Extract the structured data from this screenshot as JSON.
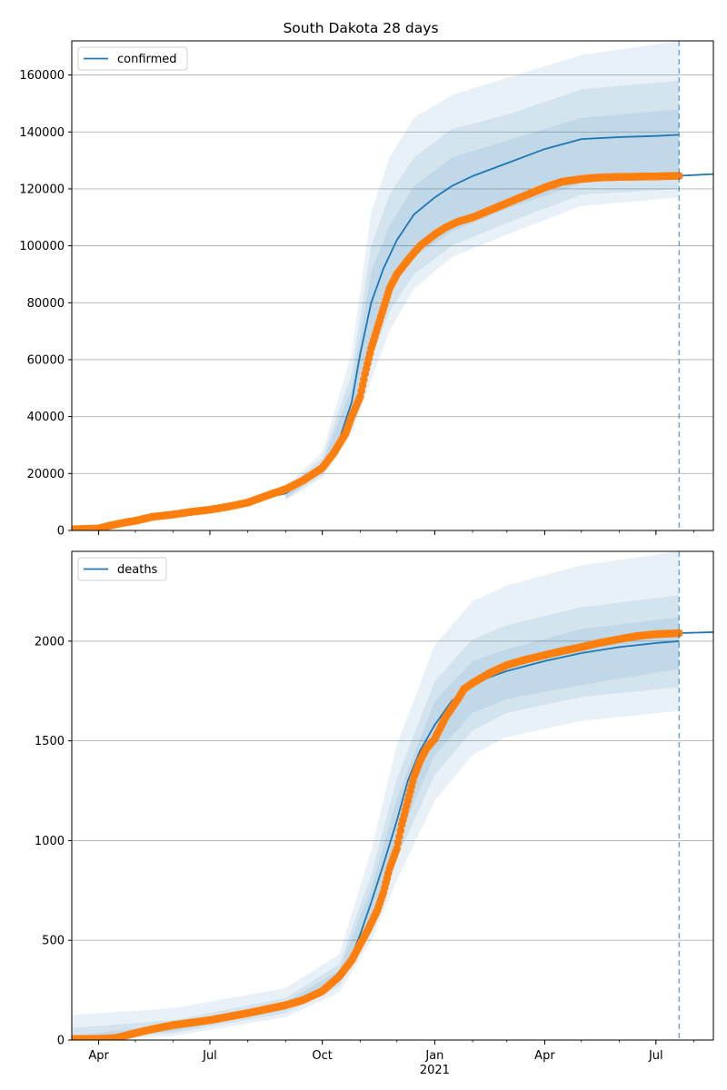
{
  "title": "South Dakota 28 days",
  "colors": {
    "model": "#1f77b4",
    "observed": "#ff7f0e",
    "band": "#1f77b4",
    "grid": "#b0b0b0",
    "forecast_line": "#1f77b4"
  },
  "chart_data": [
    {
      "type": "line",
      "panel": "confirmed",
      "legend": "confirmed",
      "legend_position": "top-left",
      "grid": "horizontal",
      "ylim": [
        0,
        172000
      ],
      "yticks": [
        0,
        20000,
        40000,
        60000,
        80000,
        100000,
        120000,
        140000,
        160000
      ],
      "xlim": [
        "2020-03-10",
        "2021-08-17"
      ],
      "forecast_start": "2021-07-20",
      "model_median": {
        "x": [
          "2020-03-10",
          "2020-04-01",
          "2020-05-01",
          "2020-06-01",
          "2020-07-01",
          "2020-08-01",
          "2020-09-01",
          "2020-09-15",
          "2020-10-01",
          "2020-10-15",
          "2020-10-25",
          "2020-11-01",
          "2020-11-10",
          "2020-11-20",
          "2020-12-01",
          "2020-12-15",
          "2021-01-01",
          "2021-01-15",
          "2021-02-01",
          "2021-03-01",
          "2021-04-01",
          "2021-05-01",
          "2021-06-01",
          "2021-07-01",
          "2021-07-20"
        ],
        "y": [
          0,
          100,
          3500,
          5500,
          7500,
          10000,
          13000,
          17000,
          22000,
          32000,
          45000,
          62000,
          80000,
          92000,
          102000,
          111000,
          117000,
          121000,
          124500,
          129000,
          134000,
          137500,
          138200,
          138600,
          139000
        ]
      },
      "bands": [
        {
          "name": "inner",
          "x": [
            "2020-09-01",
            "2020-10-01",
            "2020-10-25",
            "2020-11-10",
            "2020-11-25",
            "2020-12-15",
            "2021-01-15",
            "2021-03-01",
            "2021-05-01",
            "2021-07-20"
          ],
          "lower": [
            11500,
            20500,
            40000,
            68000,
            84000,
            96000,
            105000,
            113000,
            122000,
            125000
          ],
          "upper": [
            13500,
            23500,
            50000,
            91000,
            107000,
            121000,
            131000,
            137000,
            145000,
            148000
          ]
        },
        {
          "name": "middle",
          "x": [
            "2020-09-01",
            "2020-10-01",
            "2020-10-25",
            "2020-11-10",
            "2020-11-25",
            "2020-12-15",
            "2021-01-15",
            "2021-03-01",
            "2021-05-01",
            "2021-07-20"
          ],
          "lower": [
            11000,
            19500,
            37000,
            60000,
            77000,
            90000,
            100000,
            108000,
            118000,
            120000
          ],
          "upper": [
            14500,
            25500,
            55000,
            100000,
            118000,
            131000,
            141000,
            146000,
            155000,
            158000
          ]
        },
        {
          "name": "outer",
          "x": [
            "2020-09-01",
            "2020-10-01",
            "2020-10-25",
            "2020-11-10",
            "2020-11-25",
            "2020-12-15",
            "2021-01-15",
            "2021-03-01",
            "2021-05-01",
            "2021-07-20"
          ],
          "lower": [
            10500,
            18500,
            34000,
            53000,
            70000,
            85000,
            96000,
            104000,
            114000,
            117000
          ],
          "upper": [
            15500,
            27500,
            62000,
            112000,
            131000,
            145000,
            153000,
            159000,
            167000,
            172000
          ]
        }
      ],
      "observed": {
        "x": [
          "2020-03-10",
          "2020-04-01",
          "2020-04-10",
          "2020-04-20",
          "2020-05-01",
          "2020-05-15",
          "2020-06-01",
          "2020-06-15",
          "2020-07-01",
          "2020-07-15",
          "2020-08-01",
          "2020-08-15",
          "2020-09-01",
          "2020-09-15",
          "2020-10-01",
          "2020-10-10",
          "2020-10-20",
          "2020-10-25",
          "2020-11-01",
          "2020-11-05",
          "2020-11-10",
          "2020-11-15",
          "2020-11-20",
          "2020-11-25",
          "2020-12-01",
          "2020-12-10",
          "2020-12-20",
          "2021-01-01",
          "2021-01-10",
          "2021-01-20",
          "2021-02-01",
          "2021-02-15",
          "2021-03-01",
          "2021-03-15",
          "2021-04-01",
          "2021-04-15",
          "2021-05-01",
          "2021-05-15",
          "2021-06-01",
          "2021-06-15",
          "2021-07-01",
          "2021-07-10",
          "2021-07-20"
        ],
        "y": [
          400,
          700,
          1700,
          2600,
          3400,
          4800,
          5600,
          6500,
          7300,
          8300,
          9800,
          12000,
          14500,
          17500,
          22000,
          27000,
          34000,
          40000,
          47000,
          55000,
          64000,
          71000,
          78000,
          85000,
          90000,
          95000,
          100000,
          104000,
          106500,
          108500,
          110000,
          112500,
          115000,
          117500,
          120500,
          122500,
          123500,
          124000,
          124200,
          124300,
          124400,
          124500,
          124600
        ]
      },
      "forecast": {
        "x": [
          "2021-07-20",
          "2021-08-17"
        ],
        "y": [
          124600,
          125200
        ]
      }
    },
    {
      "type": "line",
      "panel": "deaths",
      "legend": "deaths",
      "legend_position": "top-left",
      "grid": "horizontal",
      "ylim": [
        0,
        2450
      ],
      "yticks": [
        0,
        500,
        1000,
        1500,
        2000
      ],
      "xlim": [
        "2020-03-10",
        "2021-08-17"
      ],
      "xticks": [
        "Apr",
        "Jul",
        "Oct",
        "Jan",
        "Apr",
        "Jul"
      ],
      "xtick_dates": [
        "2020-04-01",
        "2020-07-01",
        "2020-10-01",
        "2021-01-01",
        "2021-04-01",
        "2021-07-01"
      ],
      "year_label": "2021",
      "forecast_start": "2021-07-20",
      "model_median": {
        "x": [
          "2020-03-10",
          "2020-04-01",
          "2020-05-01",
          "2020-06-01",
          "2020-07-01",
          "2020-08-01",
          "2020-09-01",
          "2020-09-15",
          "2020-10-01",
          "2020-10-15",
          "2020-10-25",
          "2020-11-01",
          "2020-11-10",
          "2020-11-20",
          "2020-12-01",
          "2020-12-10",
          "2020-12-20",
          "2021-01-01",
          "2021-01-15",
          "2021-02-01",
          "2021-02-15",
          "2021-03-01",
          "2021-04-01",
          "2021-05-01",
          "2021-06-01",
          "2021-07-01",
          "2021-07-20"
        ],
        "y": [
          0,
          5,
          25,
          60,
          100,
          135,
          170,
          195,
          240,
          320,
          420,
          530,
          690,
          880,
          1100,
          1300,
          1450,
          1580,
          1700,
          1780,
          1820,
          1850,
          1900,
          1940,
          1970,
          1990,
          2000
        ]
      },
      "bands": [
        {
          "name": "inner",
          "x": [
            "2020-03-10",
            "2020-06-01",
            "2020-09-01",
            "2020-10-15",
            "2020-11-10",
            "2020-12-01",
            "2021-01-01",
            "2021-02-01",
            "2021-03-01",
            "2021-05-01",
            "2021-07-20"
          ],
          "lower": [
            0,
            45,
            150,
            290,
            620,
            990,
            1430,
            1640,
            1710,
            1780,
            1860
          ],
          "upper": [
            20,
            80,
            190,
            350,
            760,
            1210,
            1700,
            1900,
            1960,
            2060,
            2120
          ]
        },
        {
          "name": "middle",
          "x": [
            "2020-03-10",
            "2020-06-01",
            "2020-09-01",
            "2020-10-15",
            "2020-11-10",
            "2020-12-01",
            "2021-01-01",
            "2021-02-01",
            "2021-03-01",
            "2021-05-01",
            "2021-07-20"
          ],
          "lower": [
            0,
            35,
            135,
            270,
            570,
            910,
            1330,
            1550,
            1640,
            1720,
            1770
          ],
          "upper": [
            60,
            100,
            210,
            380,
            830,
            1310,
            1800,
            2010,
            2080,
            2170,
            2230
          ]
        },
        {
          "name": "outer",
          "x": [
            "2020-03-10",
            "2020-06-01",
            "2020-09-01",
            "2020-10-15",
            "2020-11-10",
            "2020-12-01",
            "2021-01-01",
            "2021-02-01",
            "2021-03-01",
            "2021-05-01",
            "2021-07-20"
          ],
          "lower": [
            0,
            20,
            115,
            240,
            500,
            800,
            1200,
            1430,
            1520,
            1600,
            1650
          ],
          "upper": [
            125,
            160,
            260,
            430,
            950,
            1480,
            1980,
            2200,
            2280,
            2380,
            2450
          ]
        }
      ],
      "observed": {
        "x": [
          "2020-03-10",
          "2020-04-01",
          "2020-04-15",
          "2020-05-01",
          "2020-05-15",
          "2020-06-01",
          "2020-07-01",
          "2020-08-01",
          "2020-09-01",
          "2020-09-15",
          "2020-10-01",
          "2020-10-15",
          "2020-10-25",
          "2020-11-01",
          "2020-11-08",
          "2020-11-15",
          "2020-11-20",
          "2020-11-25",
          "2020-12-01",
          "2020-12-05",
          "2020-12-10",
          "2020-12-15",
          "2020-12-20",
          "2020-12-25",
          "2021-01-01",
          "2021-01-10",
          "2021-01-20",
          "2021-01-25",
          "2021-02-01",
          "2021-02-15",
          "2021-03-01",
          "2021-03-15",
          "2021-04-01",
          "2021-04-15",
          "2021-05-01",
          "2021-05-15",
          "2021-06-01",
          "2021-06-15",
          "2021-07-01",
          "2021-07-20"
        ],
        "y": [
          5,
          6,
          10,
          35,
          55,
          75,
          100,
          135,
          175,
          200,
          245,
          320,
          400,
          480,
          560,
          650,
          740,
          860,
          960,
          1080,
          1200,
          1320,
          1400,
          1460,
          1510,
          1620,
          1710,
          1760,
          1790,
          1840,
          1880,
          1905,
          1930,
          1950,
          1970,
          1990,
          2010,
          2025,
          2035,
          2040
        ]
      },
      "forecast": {
        "x": [
          "2021-07-20",
          "2021-08-17"
        ],
        "y": [
          2040,
          2045
        ]
      }
    }
  ]
}
